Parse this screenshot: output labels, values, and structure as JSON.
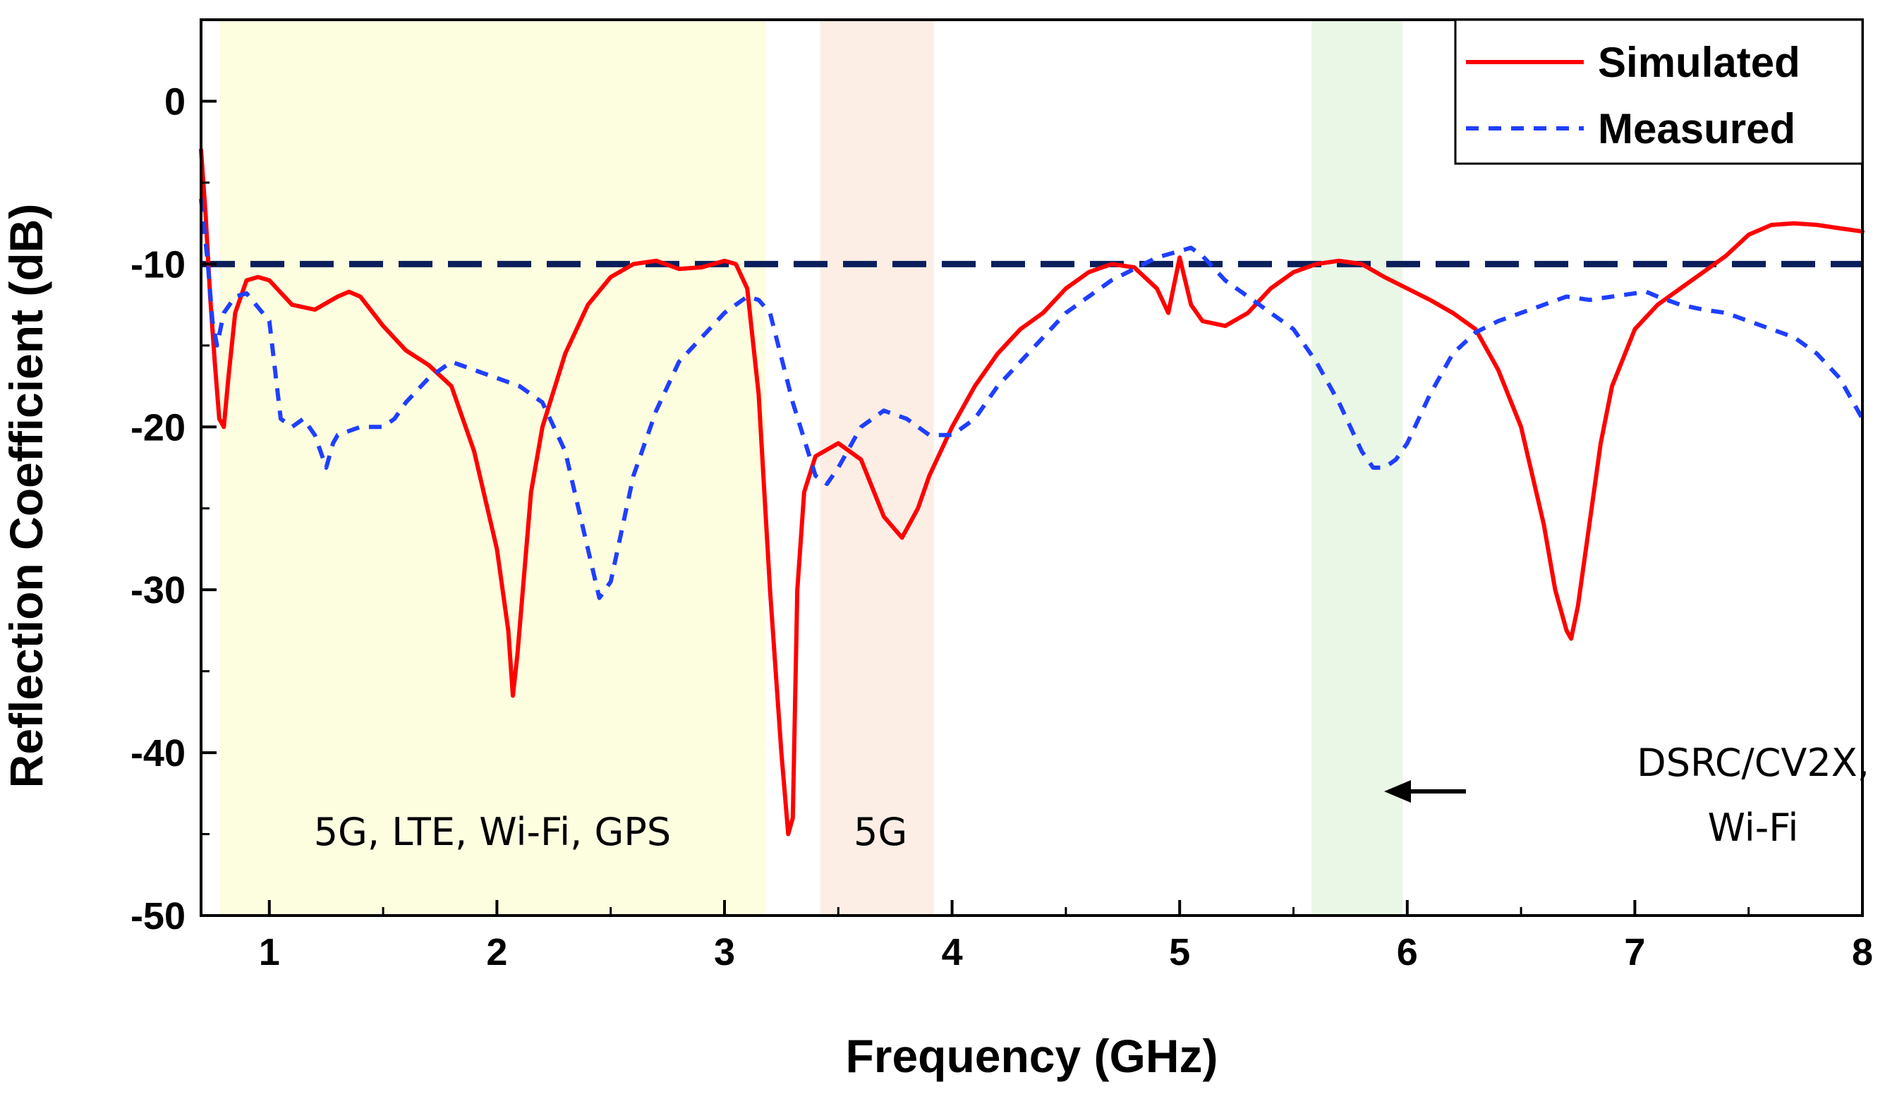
{
  "chart_data": {
    "type": "line",
    "title": "",
    "xlabel": "Frequency (GHz)",
    "ylabel": "Reflection Coefficient (dB)",
    "xlim": [
      0.7,
      8
    ],
    "ylim": [
      -50,
      5
    ],
    "x_ticks": [
      1,
      2,
      3,
      4,
      5,
      6,
      7,
      8
    ],
    "x_tick_labels": [
      "1",
      "2",
      "3",
      "4",
      "5",
      "6",
      "7",
      "8"
    ],
    "y_ticks": [
      0,
      -10,
      -20,
      -30,
      -40,
      -50
    ],
    "y_tick_labels": [
      "0",
      "-10",
      "-20",
      "-30",
      "-40",
      "-50"
    ],
    "grid": false,
    "legend_position": "top-right",
    "reference_line": {
      "y": -10,
      "color": "#0b1f5c",
      "style": "dashed"
    },
    "bands": [
      {
        "x0": 0.78,
        "x1": 3.18,
        "color": "#fdfde0",
        "label_lines": [
          "5G, LTE, Wi-Fi, GPS"
        ]
      },
      {
        "x0": 3.42,
        "x1": 3.92,
        "color": "#fdeee5",
        "label_lines": [
          "5G"
        ]
      },
      {
        "x0": 5.58,
        "x1": 5.98,
        "color": "#eaf6e6",
        "label_lines": [
          "DSRC/CV2X,",
          "Wi-Fi"
        ]
      }
    ],
    "series": [
      {
        "name": "Simulated",
        "color": "#ff0000",
        "style": "solid",
        "x": [
          0.7,
          0.72,
          0.74,
          0.76,
          0.78,
          0.8,
          0.82,
          0.85,
          0.9,
          0.95,
          1.0,
          1.1,
          1.2,
          1.3,
          1.35,
          1.4,
          1.5,
          1.6,
          1.7,
          1.8,
          1.9,
          2.0,
          2.05,
          2.07,
          2.09,
          2.15,
          2.2,
          2.3,
          2.4,
          2.5,
          2.6,
          2.7,
          2.8,
          2.9,
          3.0,
          3.05,
          3.1,
          3.15,
          3.2,
          3.25,
          3.28,
          3.3,
          3.32,
          3.35,
          3.4,
          3.5,
          3.6,
          3.7,
          3.78,
          3.85,
          3.9,
          4.0,
          4.1,
          4.2,
          4.3,
          4.4,
          4.5,
          4.6,
          4.7,
          4.8,
          4.9,
          4.95,
          5.0,
          5.05,
          5.1,
          5.2,
          5.3,
          5.4,
          5.5,
          5.6,
          5.7,
          5.8,
          5.9,
          6.0,
          6.1,
          6.2,
          6.3,
          6.4,
          6.5,
          6.6,
          6.65,
          6.7,
          6.72,
          6.75,
          6.8,
          6.85,
          6.9,
          7.0,
          7.1,
          7.2,
          7.3,
          7.4,
          7.5,
          7.6,
          7.7,
          7.8,
          7.9,
          8.0
        ],
        "y": [
          -3,
          -7,
          -12,
          -16,
          -19.5,
          -20,
          -17,
          -13,
          -11,
          -10.8,
          -11,
          -12.5,
          -12.8,
          -12,
          -11.7,
          -12,
          -13.8,
          -15.3,
          -16.2,
          -17.5,
          -21.5,
          -27.5,
          -32.5,
          -36.5,
          -34,
          -24,
          -20,
          -15.5,
          -12.5,
          -10.8,
          -10,
          -9.8,
          -10.3,
          -10.2,
          -9.8,
          -10,
          -11.5,
          -18,
          -30,
          -40,
          -45,
          -44,
          -30,
          -24,
          -21.8,
          -21,
          -22,
          -25.5,
          -26.8,
          -25,
          -23,
          -20,
          -17.5,
          -15.5,
          -14,
          -13,
          -11.5,
          -10.5,
          -10,
          -10.2,
          -11.5,
          -13,
          -9.6,
          -12.5,
          -13.5,
          -13.8,
          -13,
          -11.5,
          -10.5,
          -10,
          -9.8,
          -10,
          -10.8,
          -11.5,
          -12.2,
          -13,
          -14,
          -16.5,
          -20,
          -26,
          -30,
          -32.5,
          -33,
          -31,
          -26,
          -21,
          -17.5,
          -14,
          -12.5,
          -11.5,
          -10.5,
          -9.5,
          -8.2,
          -7.6,
          -7.5,
          -7.6,
          -7.8,
          -8
        ]
      },
      {
        "name": "Measured",
        "color": "#1f3fff",
        "style": "dashed",
        "x": [
          0.7,
          0.73,
          0.75,
          0.77,
          0.8,
          0.85,
          0.9,
          1.0,
          1.05,
          1.1,
          1.15,
          1.2,
          1.25,
          1.28,
          1.3,
          1.4,
          1.5,
          1.55,
          1.6,
          1.7,
          1.8,
          1.9,
          2.0,
          2.1,
          2.2,
          2.3,
          2.4,
          2.45,
          2.5,
          2.6,
          2.7,
          2.8,
          2.9,
          3.0,
          3.1,
          3.15,
          3.2,
          3.3,
          3.4,
          3.45,
          3.5,
          3.6,
          3.7,
          3.8,
          3.9,
          4.0,
          4.1,
          4.2,
          4.3,
          4.4,
          4.5,
          4.6,
          4.7,
          4.8,
          4.9,
          5.0,
          5.05,
          5.1,
          5.2,
          5.3,
          5.4,
          5.5,
          5.6,
          5.7,
          5.8,
          5.85,
          5.9,
          5.95,
          6.0,
          6.1,
          6.2,
          6.3,
          6.4,
          6.5,
          6.6,
          6.7,
          6.8,
          6.9,
          7.0,
          7.05,
          7.1,
          7.2,
          7.3,
          7.4,
          7.5,
          7.6,
          7.7,
          7.8,
          7.9,
          8.0
        ],
        "y": [
          -6,
          -10,
          -13.5,
          -15,
          -13,
          -12,
          -11.8,
          -13.5,
          -19.5,
          -20,
          -19.5,
          -20.5,
          -22.5,
          -21,
          -20.5,
          -20,
          -20,
          -19.5,
          -18.5,
          -17,
          -16,
          -16.5,
          -17,
          -17.5,
          -18.5,
          -21.5,
          -27.5,
          -30.5,
          -29.5,
          -23,
          -19,
          -16,
          -14.5,
          -13,
          -12,
          -12.2,
          -13,
          -18.5,
          -23,
          -23.5,
          -22.5,
          -20,
          -19,
          -19.5,
          -20.5,
          -20.5,
          -19.5,
          -17.5,
          -16,
          -14.5,
          -13,
          -12,
          -11,
          -10.3,
          -9.6,
          -9.2,
          -9,
          -9.5,
          -11,
          -12,
          -13,
          -14,
          -16,
          -18.5,
          -21.5,
          -22.5,
          -22.5,
          -22,
          -21,
          -18,
          -15.5,
          -14.2,
          -13.5,
          -13,
          -12.5,
          -12,
          -12.2,
          -12,
          -11.8,
          -11.7,
          -12,
          -12.5,
          -12.8,
          -13,
          -13.5,
          -14,
          -14.5,
          -15.5,
          -17,
          -19.5
        ]
      }
    ]
  }
}
